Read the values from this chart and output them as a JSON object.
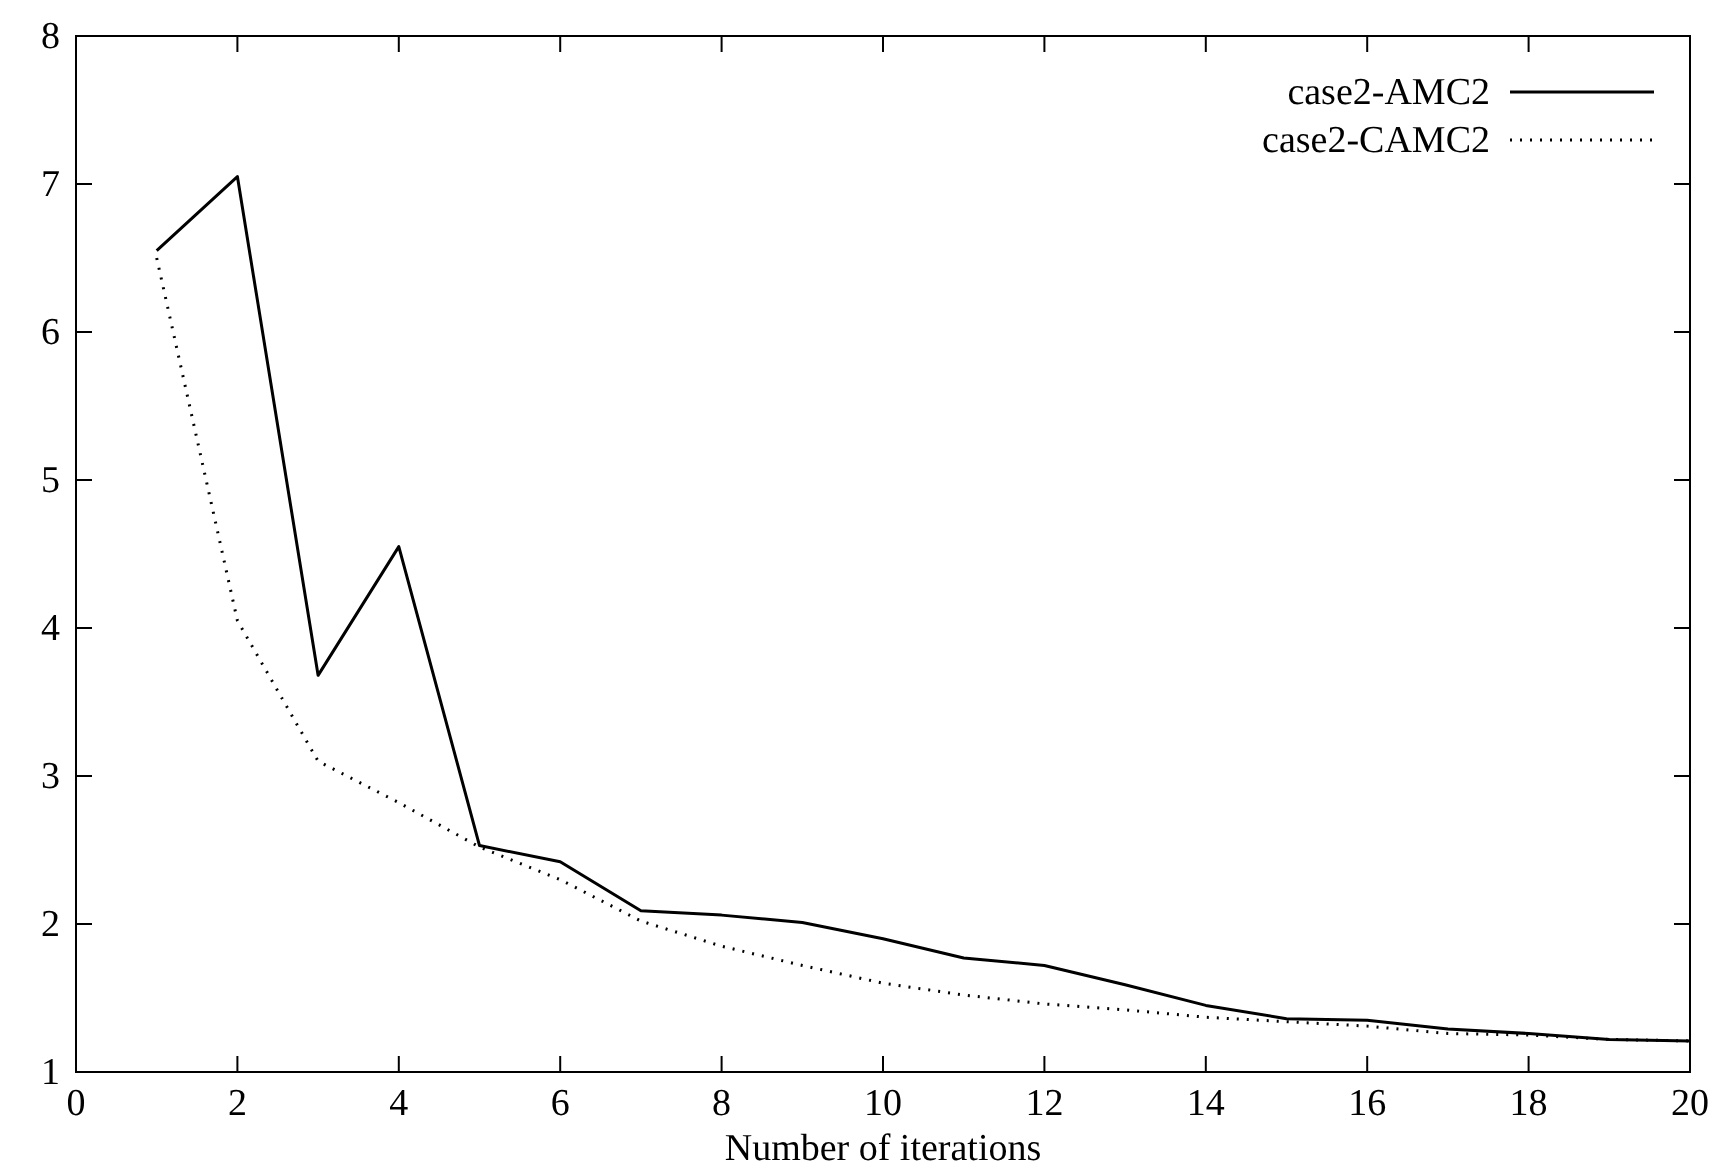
{
  "chart_data": {
    "type": "line",
    "xlabel": "Number of iterations",
    "xlim": [
      0,
      20
    ],
    "xticks": [
      0,
      2,
      4,
      6,
      8,
      10,
      12,
      14,
      16,
      18,
      20
    ],
    "ylim": [
      1,
      8
    ],
    "yticks": [
      1,
      2,
      3,
      4,
      5,
      6,
      7,
      8
    ],
    "grid": false,
    "legend": "top right",
    "x": [
      1,
      2,
      3,
      4,
      5,
      6,
      7,
      8,
      9,
      10,
      11,
      12,
      13,
      14,
      15,
      16,
      17,
      18,
      19,
      20
    ],
    "series": [
      {
        "name": "case2-AMC2",
        "color": "#000000",
        "line_style": "solid",
        "values": [
          6.55,
          7.05,
          3.68,
          4.55,
          2.53,
          2.42,
          2.09,
          2.06,
          2.01,
          1.9,
          1.77,
          1.72,
          1.59,
          1.45,
          1.36,
          1.35,
          1.29,
          1.26,
          1.22,
          1.21
        ]
      },
      {
        "name": "case2-CAMC2",
        "color": "#000000",
        "line_style": "dotted",
        "values": [
          6.5,
          4.05,
          3.1,
          2.82,
          2.52,
          2.3,
          2.02,
          1.85,
          1.72,
          1.6,
          1.52,
          1.46,
          1.42,
          1.37,
          1.34,
          1.31,
          1.26,
          1.25,
          1.22,
          1.21
        ]
      }
    ]
  }
}
